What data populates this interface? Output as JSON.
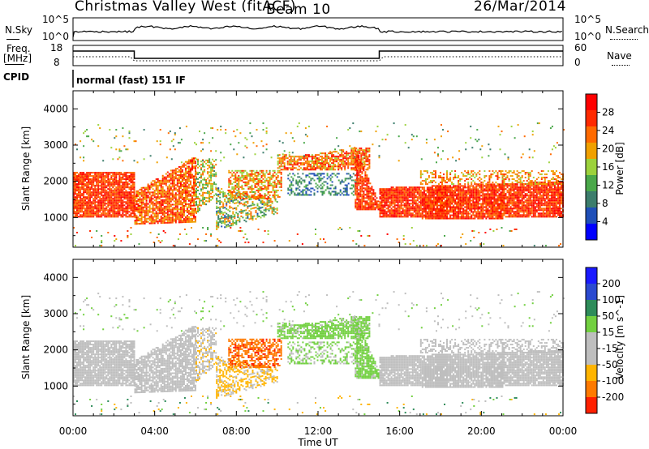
{
  "header": {
    "station": "Christmas Valley West (fitACF)",
    "beam": "Beam 10",
    "date": "26/Mar/2014"
  },
  "top_panel": {
    "left_label": "N.Sky",
    "left_ticks": [
      "10^5",
      "10^0"
    ],
    "right_label": "N.Search",
    "right_ticks": [
      "10^5",
      "10^0"
    ]
  },
  "freq_panel": {
    "left_label_line1": "Freq.",
    "left_label_line2": "[MHz]",
    "left_ticks": [
      "18",
      "8"
    ],
    "right_label": "Nave",
    "right_ticks": [
      "60",
      "0"
    ]
  },
  "cpid": {
    "label": "CPID",
    "value": "normal (fast) 151 IF"
  },
  "colors": {
    "power_scale": [
      "#0000ff",
      "#1f4fb8",
      "#3c7d6c",
      "#4aa84a",
      "#9cd23c",
      "#f0a000",
      "#ff6a00",
      "#ff2a00",
      "#ff0000"
    ],
    "velocity_scale": [
      "#1a1aff",
      "#2b4ad0",
      "#2e8c5a",
      "#72d040",
      "#bebebe",
      "#bebebe",
      "#ffb400",
      "#ff7a00",
      "#ff2000"
    ]
  },
  "chart_data": [
    {
      "type": "heatmap",
      "name": "power",
      "xlabel": "Time UT",
      "ylabel": "Slant Range [km]",
      "x_ticks": [
        "00:00",
        "04:00",
        "08:00",
        "12:00",
        "16:00",
        "20:00",
        "00:00"
      ],
      "xlim_hours": [
        0,
        24
      ],
      "y_ticks": [
        1000,
        2000,
        3000,
        4000
      ],
      "ylim_km": [
        180,
        4500
      ],
      "colorbar_label": "Power [dB]",
      "colorbar_ticks": [
        4,
        8,
        12,
        16,
        20,
        24,
        28
      ],
      "colorbar_range": [
        0,
        32
      ]
    },
    {
      "type": "heatmap",
      "name": "velocity",
      "xlabel": "Time UT",
      "ylabel": "Slant Range [km]",
      "x_ticks": [
        "00:00",
        "04:00",
        "08:00",
        "12:00",
        "16:00",
        "20:00",
        "00:00"
      ],
      "xlim_hours": [
        0,
        24
      ],
      "y_ticks": [
        1000,
        2000,
        3000,
        4000
      ],
      "ylim_km": [
        180,
        4500
      ],
      "colorbar_label": "Velocity [m s^-1]",
      "colorbar_ticks": [
        200,
        100,
        50,
        15,
        -15,
        -50,
        -100,
        -200
      ]
    }
  ]
}
